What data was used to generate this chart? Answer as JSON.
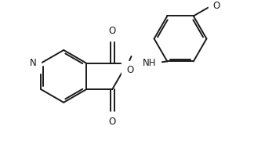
{
  "background": "#ffffff",
  "line_color": "#1a1a1a",
  "line_width": 1.4,
  "font_size": 8.5,
  "xlim": [
    0,
    3.3
  ],
  "ylim": [
    -0.15,
    2.05
  ],
  "figsize": [
    3.24,
    1.98
  ],
  "dpi": 100
}
